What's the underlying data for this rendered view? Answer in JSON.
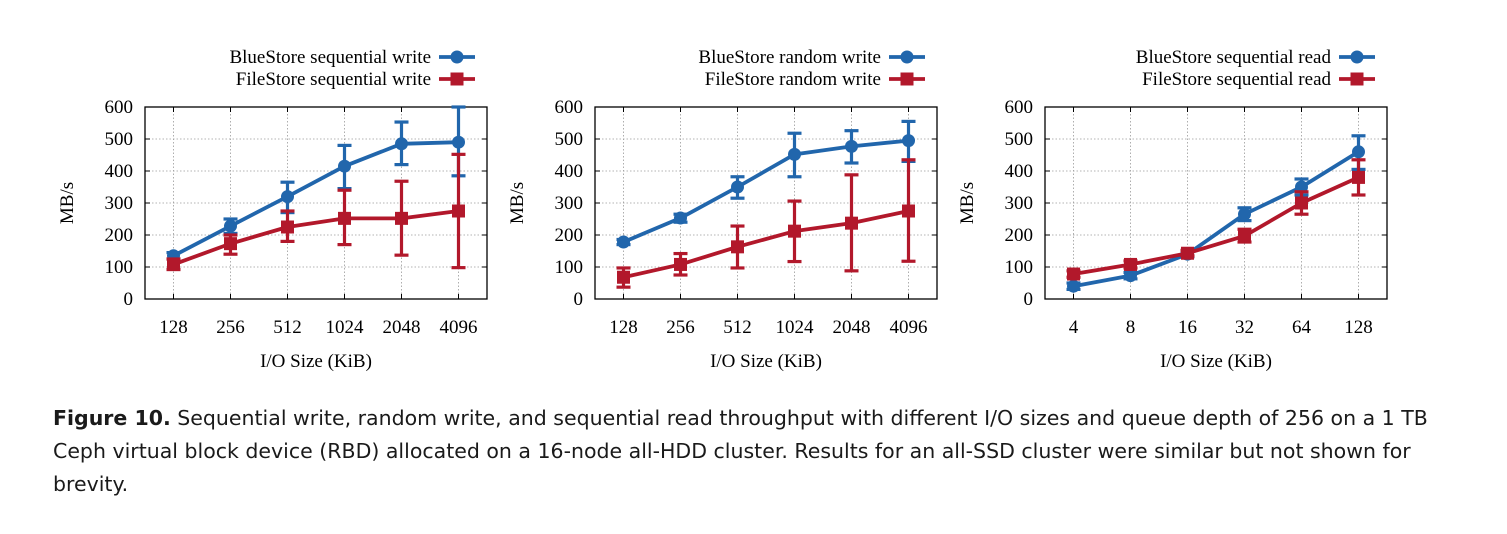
{
  "chart_data": [
    {
      "type": "line",
      "ylabel": "MB/s",
      "xlabel": "I/O Size (KiB)",
      "categories": [
        "128",
        "256",
        "512",
        "1024",
        "2048",
        "4096"
      ],
      "ylim": [
        0,
        600
      ],
      "yticks": [
        0,
        100,
        200,
        300,
        400,
        500,
        600
      ],
      "grid": true,
      "legend_position": "top-right",
      "series": [
        {
          "name": "BlueStore sequential write",
          "color": "#2166ac",
          "marker": "circle",
          "values": [
            135,
            228,
            320,
            415,
            485,
            490
          ],
          "err_low": [
            125,
            205,
            270,
            345,
            420,
            385
          ],
          "err_high": [
            145,
            250,
            365,
            480,
            553,
            600
          ]
        },
        {
          "name": "FileStore sequential write",
          "color": "#b2182b",
          "marker": "square",
          "values": [
            108,
            173,
            225,
            252,
            252,
            275
          ],
          "err_low": [
            92,
            140,
            180,
            170,
            137,
            98
          ],
          "err_high": [
            125,
            200,
            275,
            340,
            368,
            452
          ]
        }
      ]
    },
    {
      "type": "line",
      "ylabel": "MB/s",
      "xlabel": "I/O Size (KiB)",
      "categories": [
        "128",
        "256",
        "512",
        "1024",
        "2048",
        "4096"
      ],
      "ylim": [
        0,
        600
      ],
      "yticks": [
        0,
        100,
        200,
        300,
        400,
        500,
        600
      ],
      "grid": true,
      "legend_position": "top-right",
      "series": [
        {
          "name": "BlueStore random write",
          "color": "#2166ac",
          "marker": "circle",
          "values": [
            178,
            253,
            350,
            452,
            477,
            495
          ],
          "err_low": [
            170,
            240,
            315,
            382,
            425,
            430
          ],
          "err_high": [
            186,
            265,
            382,
            518,
            526,
            555
          ]
        },
        {
          "name": "FileStore random write",
          "color": "#b2182b",
          "marker": "square",
          "values": [
            68,
            108,
            163,
            212,
            237,
            275
          ],
          "err_low": [
            37,
            75,
            97,
            117,
            88,
            118
          ],
          "err_high": [
            97,
            142,
            228,
            306,
            388,
            435
          ]
        }
      ]
    },
    {
      "type": "line",
      "ylabel": "MB/s",
      "xlabel": "I/O Size (KiB)",
      "categories": [
        "4",
        "8",
        "16",
        "32",
        "64",
        "128"
      ],
      "ylim": [
        0,
        600
      ],
      "yticks": [
        0,
        100,
        200,
        300,
        400,
        500,
        600
      ],
      "grid": true,
      "legend_position": "top-right",
      "series": [
        {
          "name": "BlueStore sequential read",
          "color": "#2166ac",
          "marker": "circle",
          "values": [
            40,
            73,
            140,
            265,
            350,
            460
          ],
          "err_low": [
            30,
            63,
            132,
            245,
            325,
            405
          ],
          "err_high": [
            50,
            83,
            148,
            285,
            375,
            510
          ]
        },
        {
          "name": "FileStore sequential read",
          "color": "#b2182b",
          "marker": "square",
          "values": [
            78,
            108,
            143,
            197,
            300,
            380
          ],
          "err_low": [
            68,
            97,
            135,
            178,
            265,
            325
          ],
          "err_high": [
            88,
            119,
            152,
            218,
            335,
            435
          ]
        }
      ]
    }
  ],
  "caption": {
    "label": "Figure 10.",
    "text": " Sequential write, random write, and sequential read throughput with different I/O sizes and queue depth of 256 on a 1 TB Ceph virtual block device (RBD) allocated on a 16-node all-HDD cluster. Results for an all-SSD cluster were similar but not shown for brevity."
  }
}
